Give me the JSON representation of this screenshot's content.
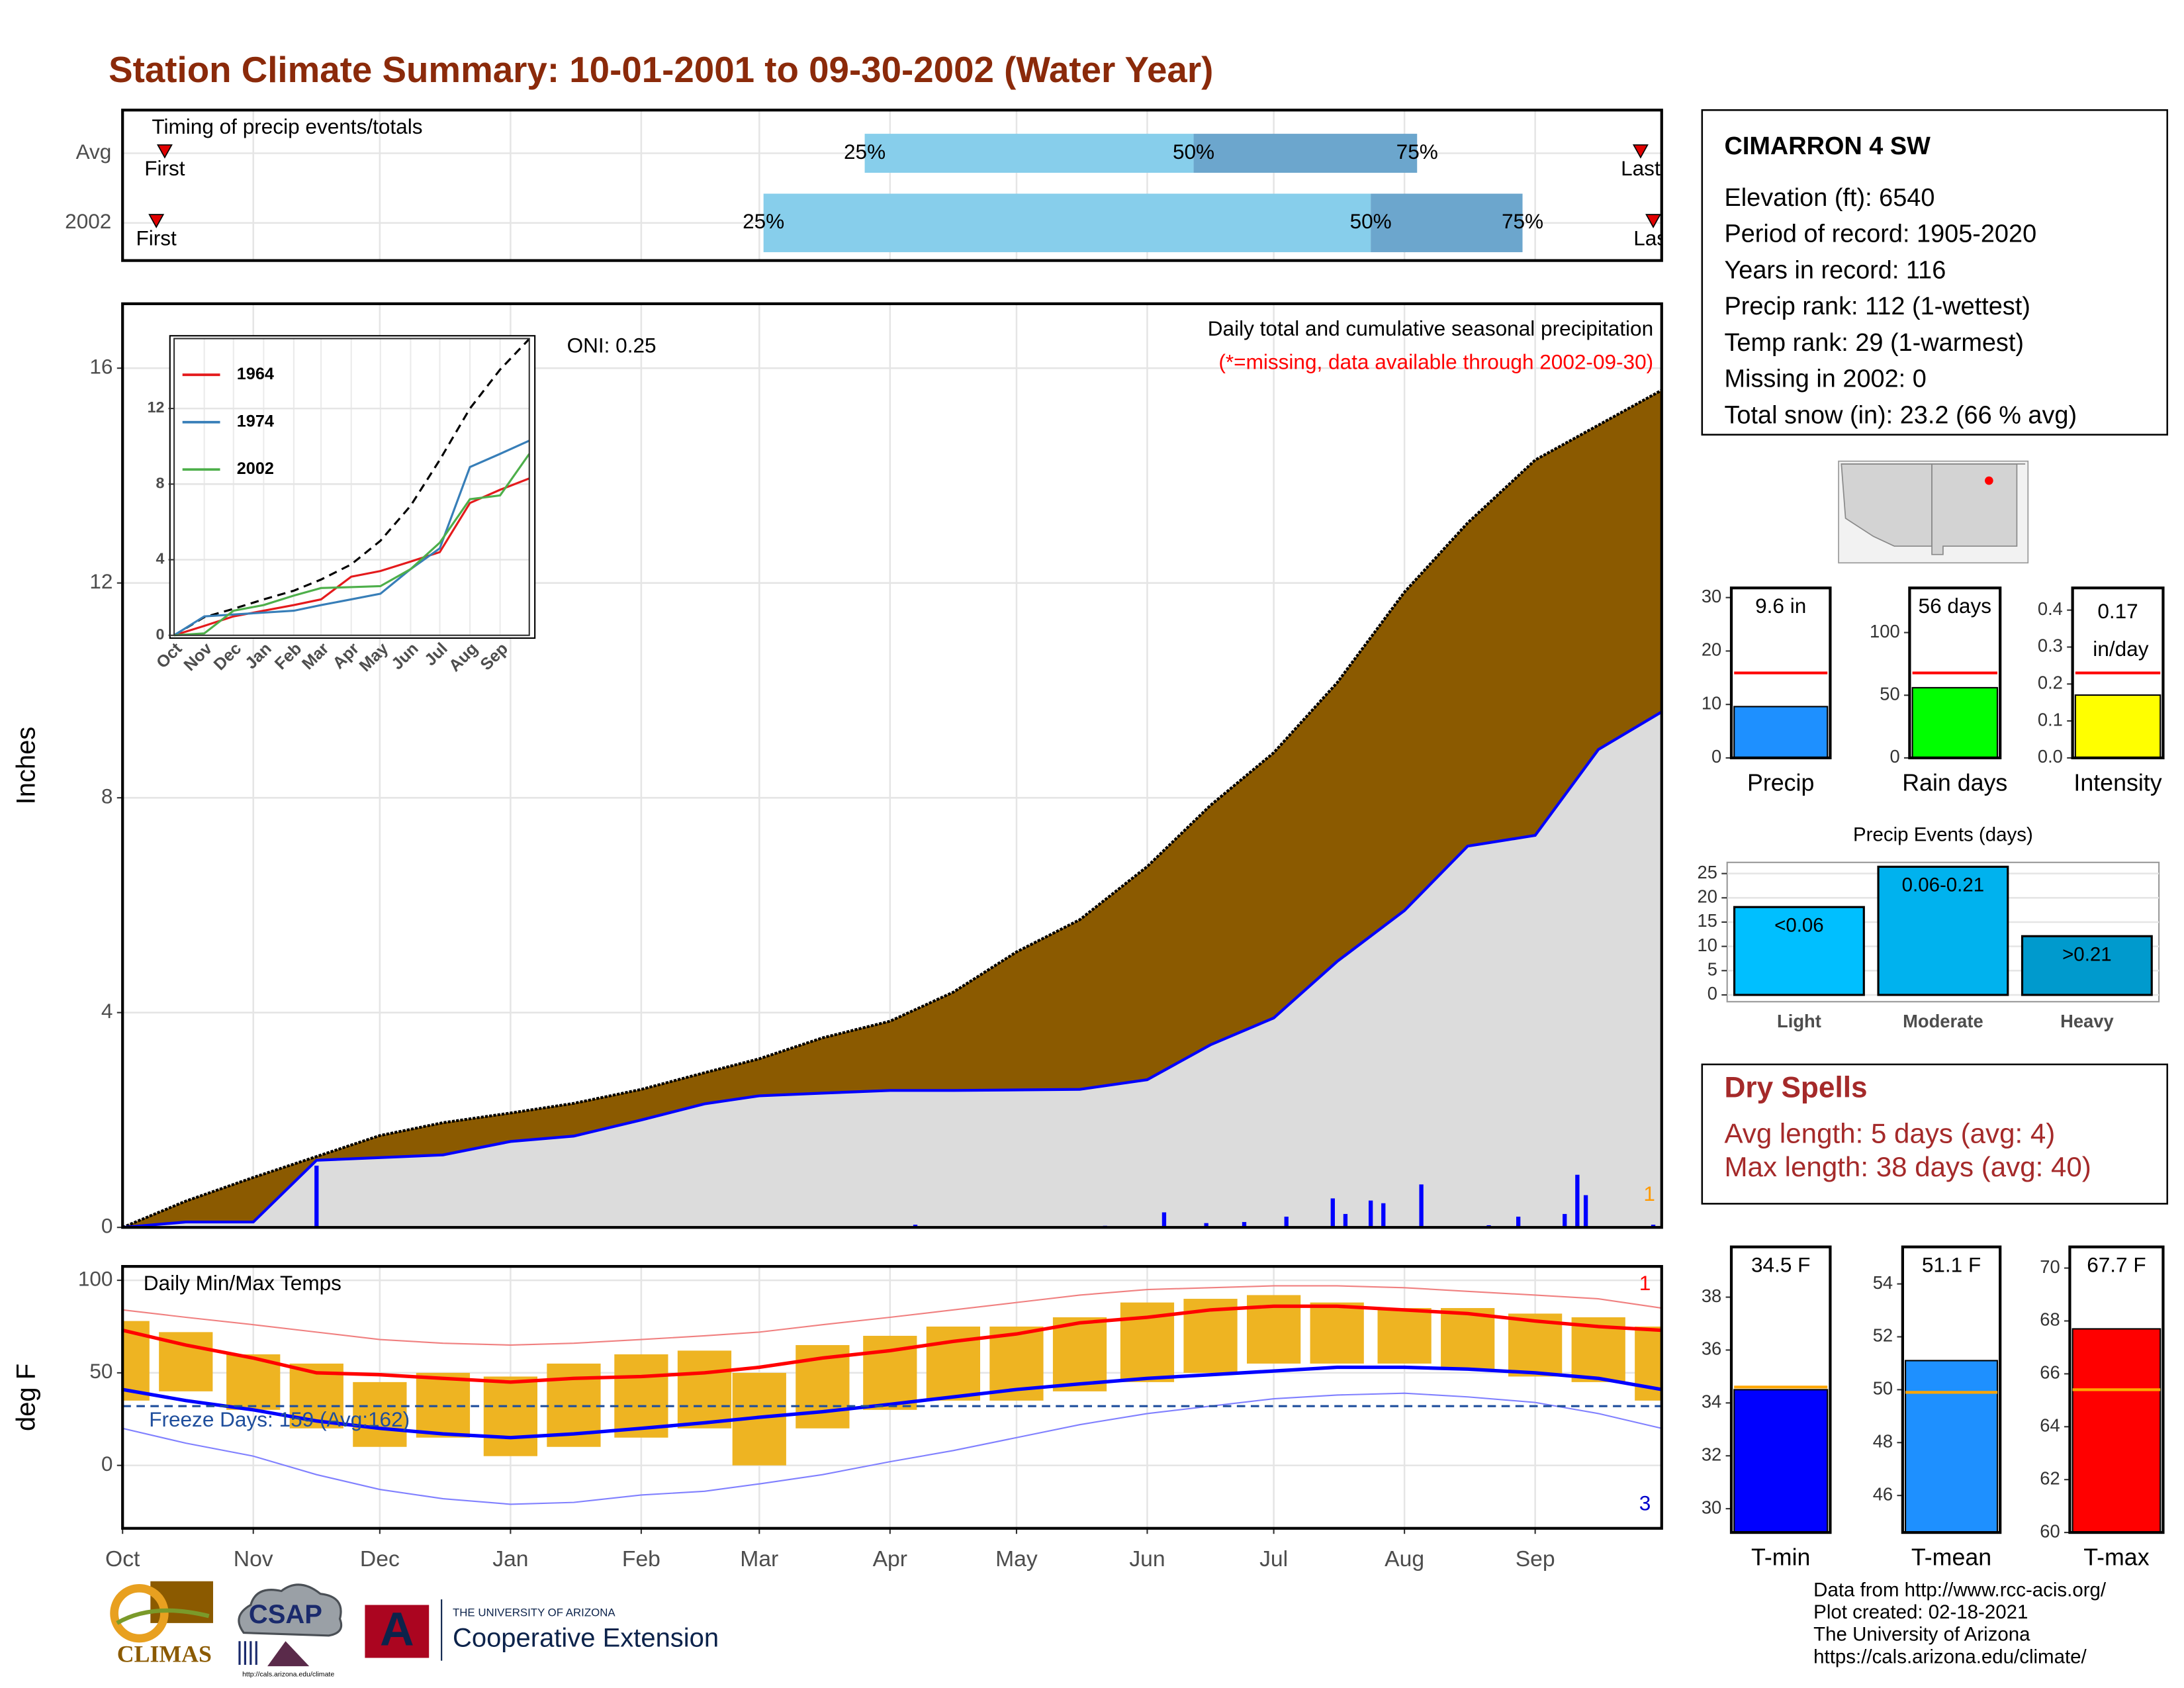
{
  "title": "Station Climate Summary: 10-01-2001 to 09-30-2002 (Water Year)",
  "station": {
    "name": "CIMARRON 4 SW",
    "lines": [
      "Elevation (ft): 6540",
      "Period of record: 1905-2020",
      "Years in record: 116",
      "Precip rank: 112 (1-wettest)",
      "Temp rank: 29 (1-warmest)",
      "Missing in 2002: 0",
      "Total snow (in): 23.2 (66 % avg)"
    ]
  },
  "dry_spells": {
    "title": "Dry Spells",
    "lines": [
      "Avg length: 5 days (avg: 4)",
      "Max length: 38 days (avg: 40)"
    ]
  },
  "footer": [
    "Data from http://www.rcc-acis.org/",
    "Plot created: 02-18-2021",
    "The University of Arizona",
    "https://cals.arizona.edu/climate/"
  ],
  "logos": {
    "climas": "CLIMAS",
    "csap": "CSAP",
    "csap_url": "http://cals.arizona.edu/climate",
    "ua": "THE UNIVERSITY OF ARIZONA",
    "extension": "Cooperative Extension"
  },
  "chart_data": [
    {
      "type": "timing",
      "title": "Timing of precip events/totals",
      "categories": [
        "Avg",
        "2002"
      ],
      "point_labels": [
        "First",
        "25%",
        "50%",
        "75%",
        "Last"
      ],
      "values": [
        [
          10,
          176,
          254,
          307,
          360
        ],
        [
          8,
          152,
          296,
          332,
          363
        ]
      ],
      "xlim": [
        0,
        365
      ],
      "colors": [
        "#87ceeb",
        "#6ca6cd",
        "#e00000"
      ],
      "grid": true
    },
    {
      "type": "cumulative",
      "title": "Daily total and cumulative seasonal precipitation",
      "subtitle": "(*=missing, data available through 2002-09-30)",
      "annotations": [
        "ONI: 0.25",
        "1"
      ],
      "annotation_colors": [
        "#000000",
        "#ff9900"
      ],
      "ylabel": "Inches",
      "xlim": [
        0,
        365
      ],
      "ylim": [
        0,
        17.2
      ],
      "yticks": [
        0,
        4,
        8,
        12,
        16
      ],
      "grid": true,
      "x": [
        0,
        15,
        31,
        46,
        61,
        76,
        92,
        107,
        123,
        138,
        151,
        166,
        182,
        197,
        212,
        227,
        243,
        258,
        273,
        288,
        304,
        319,
        335,
        350,
        365
      ],
      "series": [
        {
          "color": "#8b5a00",
          "values": [
            0,
            0.49,
            0.93,
            1.32,
            1.71,
            1.95,
            2.13,
            2.31,
            2.57,
            2.88,
            3.14,
            3.53,
            3.84,
            4.38,
            5.13,
            5.73,
            6.72,
            7.86,
            8.84,
            10.14,
            11.83,
            13.12,
            14.29,
            14.94,
            15.59
          ]
        },
        {
          "color": "#0000ff",
          "fill": "#dcdcdc",
          "values": [
            0,
            0.1,
            0.1,
            1.25,
            1.3,
            1.35,
            1.6,
            1.7,
            2.0,
            2.3,
            2.45,
            2.5,
            2.55,
            2.55,
            2.56,
            2.57,
            2.75,
            3.4,
            3.9,
            4.95,
            5.9,
            7.1,
            7.3,
            8.9,
            9.6
          ]
        }
      ],
      "daily": {
        "color": "#0000ff",
        "x": [
          46,
          188,
          233,
          247,
          257,
          266,
          276,
          287,
          290,
          296,
          299,
          308,
          324,
          331,
          342,
          345,
          347,
          363
        ],
        "values": [
          1.15,
          0.05,
          0.03,
          0.28,
          0.08,
          0.1,
          0.2,
          0.54,
          0.25,
          0.5,
          0.45,
          0.8,
          0.04,
          0.2,
          0.25,
          0.98,
          0.6,
          0.05
        ]
      }
    },
    {
      "type": "line",
      "xlim": [
        0,
        365
      ],
      "ylim": [
        0,
        15.7
      ],
      "yticks": [
        0,
        4,
        8,
        12
      ],
      "grid": true,
      "xticks": [
        {
          "value": 0,
          "label": "Oct"
        },
        {
          "value": 31,
          "label": "Nov"
        },
        {
          "value": 61,
          "label": "Dec"
        },
        {
          "value": 92,
          "label": "Jan"
        },
        {
          "value": 123,
          "label": "Feb"
        },
        {
          "value": 151,
          "label": "Mar"
        },
        {
          "value": 182,
          "label": "Apr"
        },
        {
          "value": 212,
          "label": "May"
        },
        {
          "value": 243,
          "label": "Jun"
        },
        {
          "value": 273,
          "label": "Jul"
        },
        {
          "value": 304,
          "label": "Aug"
        },
        {
          "value": 335,
          "label": "Sep"
        }
      ],
      "x": [
        0,
        31,
        61,
        92,
        123,
        151,
        182,
        212,
        243,
        273,
        304,
        335,
        365
      ],
      "series": [
        {
          "color": "#000000",
          "dashed": true,
          "values": [
            0,
            0.96,
            1.4,
            1.9,
            2.36,
            2.95,
            3.75,
            5.0,
            6.85,
            9.28,
            12.0,
            14.06,
            15.68
          ]
        },
        {
          "name": "1964",
          "color": "#e41a1c",
          "values": [
            0,
            0.5,
            1.0,
            1.3,
            1.6,
            1.9,
            3.1,
            3.4,
            3.9,
            4.4,
            7.0,
            7.7,
            8.3
          ]
        },
        {
          "name": "1974",
          "color": "#377eb8",
          "values": [
            0,
            1.0,
            1.1,
            1.2,
            1.3,
            1.6,
            1.9,
            2.2,
            3.5,
            4.6,
            8.9,
            9.6,
            10.3
          ]
        },
        {
          "name": "2002",
          "color": "#4daf4a",
          "values": [
            0,
            0.1,
            1.3,
            1.6,
            2.1,
            2.5,
            2.55,
            2.6,
            3.5,
            4.9,
            7.2,
            7.4,
            9.6
          ]
        }
      ]
    },
    {
      "type": "temperature",
      "title": "Daily Min/Max Temps",
      "annotations": [
        "Freeze Days: 159 (Avg:162)",
        "1",
        "3"
      ],
      "annotation_colors": [
        "#1f4e9c",
        "#ff0000",
        "#0000cc"
      ],
      "ylabel": "deg F",
      "xlim": [
        0,
        365
      ],
      "ylim": [
        -34,
        107.5
      ],
      "yticks": [
        0,
        50,
        100
      ],
      "grid": true,
      "freeze_line": 32,
      "xticks": [
        {
          "value": 0,
          "label": "Oct"
        },
        {
          "value": 31,
          "label": "Nov"
        },
        {
          "value": 61,
          "label": "Dec"
        },
        {
          "value": 92,
          "label": "Jan"
        },
        {
          "value": 123,
          "label": "Feb"
        },
        {
          "value": 151,
          "label": "Mar"
        },
        {
          "value": 182,
          "label": "Apr"
        },
        {
          "value": 212,
          "label": "May"
        },
        {
          "value": 243,
          "label": "Jun"
        },
        {
          "value": 273,
          "label": "Jul"
        },
        {
          "value": 304,
          "label": "Aug"
        },
        {
          "value": 335,
          "label": "Sep"
        }
      ],
      "x": [
        0,
        15,
        31,
        46,
        61,
        76,
        92,
        107,
        123,
        138,
        151,
        166,
        182,
        197,
        212,
        227,
        243,
        258,
        273,
        288,
        304,
        319,
        335,
        350,
        365
      ],
      "ranges": {
        "color": "#eeb422",
        "low": [
          35,
          40,
          30,
          20,
          10,
          15,
          5,
          10,
          15,
          20,
          0,
          20,
          30,
          35,
          35,
          40,
          45,
          50,
          55,
          55,
          55,
          52,
          48,
          45,
          35
        ],
        "high": [
          78,
          72,
          60,
          55,
          45,
          50,
          48,
          55,
          60,
          62,
          50,
          65,
          70,
          75,
          75,
          80,
          88,
          90,
          92,
          88,
          85,
          85,
          82,
          80,
          75
        ]
      },
      "series": [
        {
          "color": "#f08080",
          "width": 1,
          "values": [
            84,
            80,
            76,
            72,
            68,
            66,
            65,
            66,
            68,
            70,
            72,
            76,
            80,
            84,
            88,
            92,
            95,
            96,
            97,
            97,
            96,
            94,
            92,
            90,
            85
          ]
        },
        {
          "color": "#8080ff",
          "width": 1,
          "values": [
            20,
            12,
            5,
            -5,
            -13,
            -18,
            -21,
            -20,
            -16,
            -14,
            -10,
            -5,
            2,
            8,
            15,
            22,
            28,
            32,
            36,
            38,
            39,
            37,
            34,
            28,
            20
          ]
        },
        {
          "color": "#ff0000",
          "width": 2.5,
          "values": [
            73,
            65,
            58,
            50,
            49,
            47,
            45,
            47,
            48,
            50,
            53,
            58,
            62,
            67,
            71,
            77,
            80,
            84,
            86,
            86,
            84,
            82,
            78,
            75,
            73
          ]
        },
        {
          "color": "#0000ff",
          "width": 2.5,
          "values": [
            41,
            35,
            30,
            24,
            20,
            17,
            15,
            17,
            20,
            23,
            26,
            29,
            33,
            37,
            41,
            44,
            47,
            49,
            51,
            53,
            53,
            52,
            50,
            47,
            41
          ]
        }
      ]
    },
    {
      "type": "summary",
      "categories": [
        "Precip"
      ],
      "values": [
        9.6
      ],
      "value_labels": [
        "9.6 in"
      ],
      "average": 15.9,
      "avg_color": "#ff0000",
      "color": "#1e90ff",
      "ylim": [
        0,
        31.8
      ],
      "yticks": [
        0,
        10,
        20,
        30
      ]
    },
    {
      "type": "summary",
      "categories": [
        "Rain days"
      ],
      "values": [
        56
      ],
      "value_labels": [
        "56 days"
      ],
      "average": 67.8,
      "avg_color": "#ff0000",
      "color": "#00ff00",
      "ylim": [
        0,
        135.6
      ],
      "yticks": [
        0,
        50,
        100
      ]
    },
    {
      "type": "summary",
      "categories": [
        "Intensity"
      ],
      "values": [
        0.17
      ],
      "value_labels": [
        "0.17 in/day"
      ],
      "average": 0.23,
      "avg_color": "#ff0000",
      "color": "#ffff00",
      "ylim": [
        0,
        0.46
      ],
      "yticks": [
        {
          "value": 0,
          "label": "0.0"
        },
        0.1,
        0.2,
        0.3,
        0.4
      ]
    },
    {
      "type": "bar",
      "title": "Precip Events (days)",
      "categories": [
        "Light",
        "Moderate",
        "Heavy"
      ],
      "values": [
        18.1,
        26.4,
        12.1
      ],
      "bar_labels": [
        "<0.06",
        "0.06-0.21",
        ">0.21"
      ],
      "colors": [
        "#00bfff",
        "#00b2ee",
        "#009acd"
      ],
      "ylim": [
        -1.4,
        27.3
      ],
      "yticks": [
        0,
        5,
        10,
        15,
        20,
        25
      ],
      "grid": true
    },
    {
      "type": "summary",
      "categories": [
        "T-min"
      ],
      "values": [
        34.5
      ],
      "value_labels": [
        "34.5 F"
      ],
      "average": 34.6,
      "avg_color": "#ffa500",
      "color": "#0000ff",
      "ylim": [
        29.1,
        39.9
      ],
      "yticks": [
        30,
        32,
        34,
        36,
        38
      ]
    },
    {
      "type": "summary",
      "categories": [
        "T-mean"
      ],
      "values": [
        51.1
      ],
      "value_labels": [
        "51.1 F"
      ],
      "average": 49.9,
      "avg_color": "#ffa500",
      "color": "#1e90ff",
      "ylim": [
        44.6,
        55.4
      ],
      "yticks": [
        46,
        48,
        50,
        52,
        54
      ]
    },
    {
      "type": "summary",
      "categories": [
        "T-max"
      ],
      "values": [
        67.7
      ],
      "value_labels": [
        "67.7 F"
      ],
      "average": 65.4,
      "avg_color": "#ffa500",
      "color": "#ff0000",
      "ylim": [
        60,
        70.8
      ],
      "yticks": [
        60,
        62,
        64,
        66,
        68,
        70
      ]
    }
  ]
}
